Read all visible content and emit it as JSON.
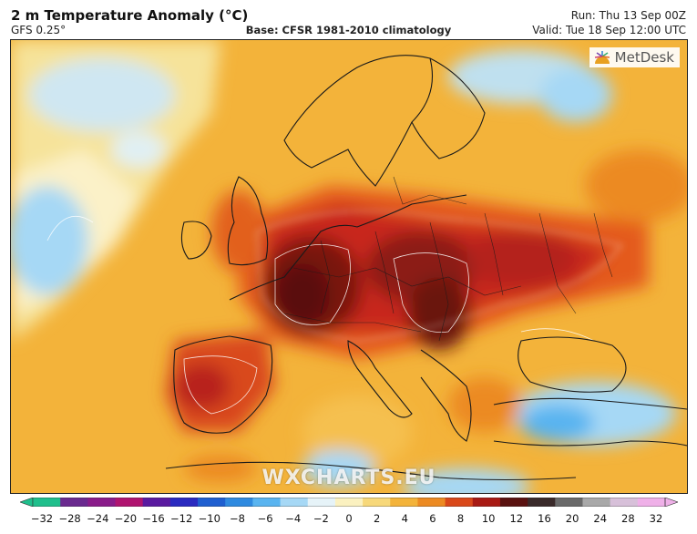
{
  "header": {
    "title": "2 m Temperature Anomaly (°C)",
    "model": "GFS 0.25°",
    "base": "Base: CFSR 1981-2010 climatology",
    "run": "Run: Thu 13 Sep 00Z",
    "valid": "Valid: Tue 18 Sep 12:00 UTC"
  },
  "brand": {
    "logo_text": "MetDesk",
    "watermark": "WXCHARTS.EU"
  },
  "colorbar": {
    "ticks": [
      "−32",
      "−28",
      "−24",
      "−20",
      "−16",
      "−12",
      "−10",
      "−8",
      "−6",
      "−4",
      "−2",
      "0",
      "2",
      "4",
      "6",
      "8",
      "10",
      "12",
      "16",
      "20",
      "24",
      "28",
      "32"
    ],
    "colors": [
      "#1fbf8c",
      "#6a2a8f",
      "#8a1c8a",
      "#b01470",
      "#5a1aa0",
      "#2a2ac0",
      "#1f5fd0",
      "#2f8ae0",
      "#59b4f0",
      "#a6d8f5",
      "#e6f3f8",
      "#fbf1c0",
      "#f7d87a",
      "#f3b33a",
      "#ec8a22",
      "#d9481a",
      "#a81a14",
      "#5a1210",
      "#3a2a2a",
      "#6a6a6a",
      "#a8a8a8",
      "#d7c0d9",
      "#efb0e8"
    ],
    "arrow_left": "#1fbf8c",
    "arrow_right": "#efb0e8"
  },
  "map": {
    "ocean_color": "#f3b33a",
    "atlantic_color": "#f5dd86",
    "cold_color": "#9fd0ee",
    "hot_color": "#c8281a",
    "very_hot_color": "#7a1510",
    "extreme_color": "#5a0f0c",
    "border_color": "#1a1a1a",
    "contour_color": "#ffffff"
  }
}
